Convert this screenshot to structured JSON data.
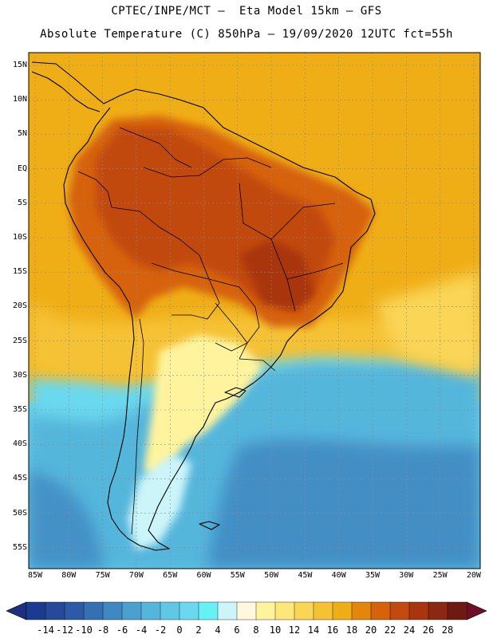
{
  "header": {
    "line1": "CPTEC/INPE/MCT –  Eta Model 15km – GFS",
    "line2": "Absolute Temperature (C) 850hPa – 19/09/2020 12UTC fct=55h"
  },
  "map": {
    "lat_labels": [
      "15N",
      "10N",
      "5N",
      "EQ",
      "5S",
      "10S",
      "15S",
      "20S",
      "25S",
      "30S",
      "35S",
      "40S",
      "45S",
      "50S",
      "55S"
    ],
    "lon_labels": [
      "85W",
      "80W",
      "75W",
      "70W",
      "65W",
      "60W",
      "55W",
      "50W",
      "45W",
      "40W",
      "35W",
      "30W",
      "25W",
      "20W"
    ],
    "fields": {
      "ocean_warm_color": "#f0ae16",
      "hot_core_color": "#c85214",
      "cold_ocean_color": "#2aa8d6"
    }
  },
  "colorbar": {
    "labels": [
      "-14",
      "-12",
      "-10",
      "-8",
      "-6",
      "-4",
      "-2",
      "0",
      "2",
      "4",
      "6",
      "8",
      "10",
      "12",
      "14",
      "16",
      "18",
      "20",
      "22",
      "24",
      "26",
      "28"
    ],
    "colors": [
      "#1a3c8e",
      "#244a99",
      "#2c5aa6",
      "#3570b4",
      "#3f88c2",
      "#4aa0cf",
      "#55b6dc",
      "#5fc8e6",
      "#6ad8ee",
      "#66f2f5",
      "#ccf5fa",
      "#fff8dd",
      "#fff49d",
      "#fde779",
      "#fad556",
      "#f5c234",
      "#f0ae16",
      "#e5860c",
      "#d6620a",
      "#c24a0e",
      "#a93510",
      "#8c2712",
      "#6e1a12"
    ],
    "low_arrow_color": "#1f2f80",
    "high_arrow_color": "#6e0f2a"
  }
}
